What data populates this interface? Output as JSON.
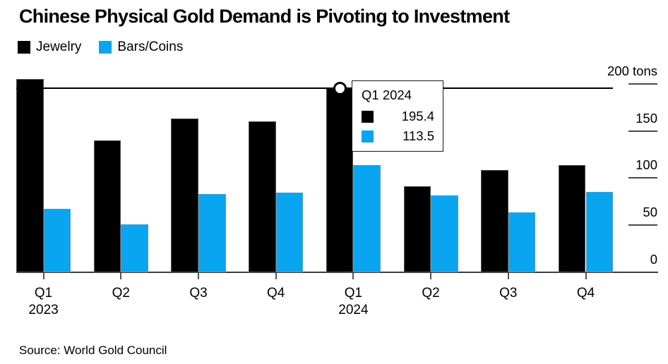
{
  "title": "Chinese Physical Gold Demand is Pivoting to Investment",
  "source": "Source: World Gold Council",
  "colors": {
    "jewelry": "#000000",
    "bars_coins": "#0aa5f0",
    "axis": "#3d3d3d",
    "hover_line": "#000000",
    "tooltip_border": "#161616"
  },
  "legend": [
    {
      "label": "Jewelry",
      "color": "#000000"
    },
    {
      "label": "Bars/Coins",
      "color": "#0aa5f0"
    }
  ],
  "tooltip": {
    "title": "Q1 2024",
    "rows": [
      {
        "series": "Jewelry",
        "color": "#000000",
        "value": "195.4"
      },
      {
        "series": "Bars/Coins",
        "color": "#0aa5f0",
        "value": "113.5"
      }
    ]
  },
  "chart_data": {
    "type": "bar",
    "title": "Chinese Physical Gold Demand is Pivoting to Investment",
    "categories": [
      "Q1 2023",
      "Q2 2023",
      "Q3 2023",
      "Q4 2023",
      "Q1 2024",
      "Q2 2024",
      "Q3 2024",
      "Q4 2024"
    ],
    "x_tick_labels": [
      "Q1",
      "Q2",
      "Q3",
      "Q4",
      "Q1",
      "Q2",
      "Q3",
      "Q4"
    ],
    "x_year_labels": [
      {
        "index": 0,
        "label": "2023"
      },
      {
        "index": 4,
        "label": "2024"
      }
    ],
    "series": [
      {
        "name": "Jewelry",
        "color": "#000000",
        "values": [
          205.0,
          140.0,
          163.0,
          160.0,
          195.4,
          91.5,
          108.5,
          113.5
        ]
      },
      {
        "name": "Bars/Coins",
        "color": "#0aa5f0",
        "values": [
          67.5,
          51.0,
          83.0,
          84.5,
          113.5,
          81.5,
          63.5,
          85.5
        ]
      }
    ],
    "ylabel": "tons",
    "y_ticks": [
      0,
      50,
      100,
      150,
      200
    ],
    "y_tick_labels": [
      "0",
      "50",
      "100",
      "150",
      "200 tons"
    ],
    "ylim": [
      0,
      210
    ],
    "grid": false,
    "legend_position": "top-left",
    "highlight": {
      "category": "Q1 2024",
      "series_values": {
        "Jewelry": 195.4,
        "Bars/Coins": 113.5
      }
    }
  }
}
